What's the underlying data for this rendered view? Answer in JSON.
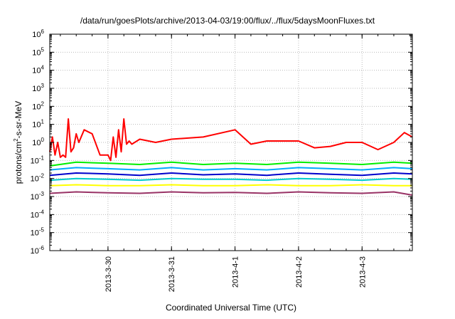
{
  "chart_data": {
    "type": "line",
    "title": "/data/run/goesPlots/archive/2013-04-03/19:00/flux/../flux/5daysMoonFluxes.txt",
    "xlabel": "Coordinated Universal Time (UTC)",
    "ylabel": {
      "base": "protons/cm",
      "sup": "2",
      "rest": "-s-sr-MeV"
    },
    "y_scale": "log",
    "ylim": [
      1e-06,
      1000000.0
    ],
    "y_ticks": [
      {
        "base": "10",
        "exp": "6",
        "value": 1000000.0
      },
      {
        "base": "10",
        "exp": "5",
        "value": 100000.0
      },
      {
        "base": "10",
        "exp": "4",
        "value": 10000.0
      },
      {
        "base": "10",
        "exp": "3",
        "value": 1000.0
      },
      {
        "base": "10",
        "exp": "2",
        "value": 100.0
      },
      {
        "base": "10",
        "exp": "1",
        "value": 10.0
      },
      {
        "base": "10",
        "exp": "0",
        "value": 1
      },
      {
        "base": "10",
        "exp": "-1",
        "value": 0.1
      },
      {
        "base": "10",
        "exp": "-2",
        "value": 0.01
      },
      {
        "base": "10",
        "exp": "-3",
        "value": 0.001
      },
      {
        "base": "10",
        "exp": "-4",
        "value": 0.0001
      },
      {
        "base": "10",
        "exp": "-5",
        "value": 1e-05
      },
      {
        "base": "10",
        "exp": "-6",
        "value": 1e-06
      }
    ],
    "xlim": [
      "2013-03-29 02:00",
      "2013-04-03 19:00"
    ],
    "x_ticks": [
      "2013-3-30",
      "2013-3-31",
      "2013-4-1",
      "2013-4-2",
      "2013-4-3"
    ],
    "grid": true,
    "series": [
      {
        "color": "#ff0000",
        "x": [
          "2013-03-29 02:00",
          "2013-03-29 03:00",
          "2013-03-29 04:00",
          "2013-03-29 05:00",
          "2013-03-29 06:00",
          "2013-03-29 07:00",
          "2013-03-29 08:00",
          "2013-03-29 09:00",
          "2013-03-29 10:00",
          "2013-03-29 11:00",
          "2013-03-29 12:00",
          "2013-03-29 13:00",
          "2013-03-29 15:00",
          "2013-03-29 18:00",
          "2013-03-29 21:00",
          "2013-03-30 00:00",
          "2013-03-30 01:00",
          "2013-03-30 02:00",
          "2013-03-30 03:00",
          "2013-03-30 04:00",
          "2013-03-30 05:00",
          "2013-03-30 06:00",
          "2013-03-30 07:00",
          "2013-03-30 08:00",
          "2013-03-30 09:00",
          "2013-03-30 12:00",
          "2013-03-30 18:00",
          "2013-03-31 00:00",
          "2013-03-31 12:00",
          "2013-04-01 00:00",
          "2013-04-01 06:00",
          "2013-04-01 12:00",
          "2013-04-02 00:00",
          "2013-04-02 06:00",
          "2013-04-02 12:00",
          "2013-04-02 18:00",
          "2013-04-03 00:00",
          "2013-04-03 06:00",
          "2013-04-03 12:00",
          "2013-04-03 16:00",
          "2013-04-03 19:00"
        ],
        "y": [
          0.3,
          2.0,
          0.2,
          1.0,
          0.15,
          0.2,
          0.15,
          20,
          0.3,
          0.5,
          3,
          1,
          5,
          3,
          0.2,
          0.2,
          0.1,
          2,
          0.15,
          5,
          0.3,
          20,
          0.8,
          1.2,
          0.8,
          1.5,
          1.0,
          1.5,
          2.0,
          5.0,
          0.8,
          1.2,
          1.2,
          0.5,
          0.6,
          1.0,
          1.0,
          0.4,
          1.0,
          3.5,
          2.0
        ]
      },
      {
        "color": "#00ee00",
        "x": [
          "2013-03-29 02:00",
          "2013-03-29 12:00",
          "2013-03-30 00:00",
          "2013-03-30 12:00",
          "2013-03-31 00:00",
          "2013-03-31 12:00",
          "2013-04-01 00:00",
          "2013-04-01 12:00",
          "2013-04-02 00:00",
          "2013-04-02 12:00",
          "2013-04-03 00:00",
          "2013-04-03 12:00",
          "2013-04-03 19:00"
        ],
        "y": [
          0.05,
          0.08,
          0.07,
          0.06,
          0.08,
          0.06,
          0.07,
          0.06,
          0.08,
          0.07,
          0.06,
          0.08,
          0.07
        ]
      },
      {
        "color": "#00aaff",
        "x": [
          "2013-03-29 02:00",
          "2013-03-29 12:00",
          "2013-03-30 00:00",
          "2013-03-30 12:00",
          "2013-03-31 00:00",
          "2013-03-31 12:00",
          "2013-04-01 00:00",
          "2013-04-01 12:00",
          "2013-04-02 00:00",
          "2013-04-02 12:00",
          "2013-04-03 00:00",
          "2013-04-03 12:00",
          "2013-04-03 19:00"
        ],
        "y": [
          0.03,
          0.04,
          0.035,
          0.03,
          0.04,
          0.03,
          0.035,
          0.03,
          0.04,
          0.035,
          0.03,
          0.04,
          0.035
        ]
      },
      {
        "color": "#0000cc",
        "x": [
          "2013-03-29 02:00",
          "2013-03-29 12:00",
          "2013-03-30 00:00",
          "2013-03-30 12:00",
          "2013-03-31 00:00",
          "2013-03-31 12:00",
          "2013-04-01 00:00",
          "2013-04-01 12:00",
          "2013-04-02 00:00",
          "2013-04-02 12:00",
          "2013-04-03 00:00",
          "2013-04-03 12:00",
          "2013-04-03 19:00"
        ],
        "y": [
          0.015,
          0.02,
          0.018,
          0.015,
          0.02,
          0.016,
          0.018,
          0.015,
          0.02,
          0.017,
          0.015,
          0.02,
          0.018
        ]
      },
      {
        "color": "#00cccc",
        "x": [
          "2013-03-29 02:00",
          "2013-03-29 12:00",
          "2013-03-30 00:00",
          "2013-03-30 12:00",
          "2013-03-31 00:00",
          "2013-03-31 12:00",
          "2013-04-01 00:00",
          "2013-04-01 12:00",
          "2013-04-02 00:00",
          "2013-04-02 12:00",
          "2013-04-03 00:00",
          "2013-04-03 12:00",
          "2013-04-03 19:00"
        ],
        "y": [
          0.008,
          0.01,
          0.009,
          0.008,
          0.01,
          0.009,
          0.009,
          0.008,
          0.01,
          0.009,
          0.008,
          0.01,
          0.009
        ]
      },
      {
        "color": "#ffff00",
        "x": [
          "2013-03-29 02:00",
          "2013-03-29 12:00",
          "2013-03-30 00:00",
          "2013-03-30 12:00",
          "2013-03-31 00:00",
          "2013-03-31 12:00",
          "2013-04-01 00:00",
          "2013-04-01 12:00",
          "2013-04-02 00:00",
          "2013-04-02 12:00",
          "2013-04-03 00:00",
          "2013-04-03 12:00",
          "2013-04-03 19:00"
        ],
        "y": [
          0.004,
          0.0045,
          0.004,
          0.004,
          0.0045,
          0.004,
          0.004,
          0.0045,
          0.004,
          0.004,
          0.0045,
          0.004,
          0.004
        ]
      },
      {
        "color": "#993366",
        "x": [
          "2013-03-29 02:00",
          "2013-03-29 12:00",
          "2013-03-30 00:00",
          "2013-03-30 12:00",
          "2013-03-31 00:00",
          "2013-03-31 12:00",
          "2013-04-01 00:00",
          "2013-04-01 12:00",
          "2013-04-02 00:00",
          "2013-04-02 12:00",
          "2013-04-03 00:00",
          "2013-04-03 12:00",
          "2013-04-03 19:00"
        ],
        "y": [
          0.0015,
          0.0018,
          0.0016,
          0.0015,
          0.0018,
          0.0016,
          0.0017,
          0.0015,
          0.0018,
          0.0016,
          0.0015,
          0.0018,
          0.0012
        ]
      }
    ]
  }
}
